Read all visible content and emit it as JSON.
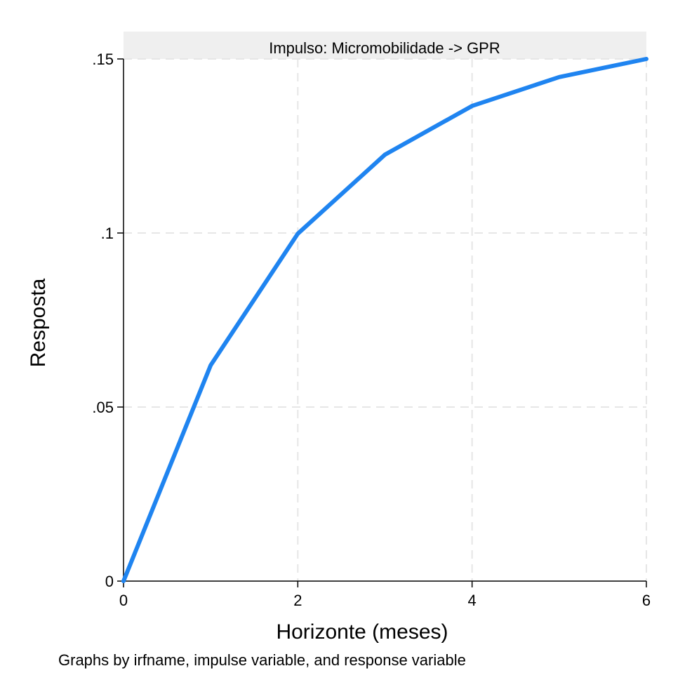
{
  "chart_data": {
    "type": "line",
    "panel_title": "Impulso: Micromobilidade -> GPR",
    "xlabel": "Horizonte (meses)",
    "ylabel": "Resposta",
    "note": "Graphs by irfname, impulse variable, and response variable",
    "xlim": [
      0,
      6
    ],
    "ylim": [
      0,
      0.15
    ],
    "x_ticks": [
      0,
      2,
      4,
      6
    ],
    "x_tick_labels": [
      "0",
      "2",
      "4",
      "6"
    ],
    "y_ticks": [
      0,
      0.05,
      0.1,
      0.15
    ],
    "y_tick_labels": [
      "0",
      ".05",
      ".1",
      ".15"
    ],
    "grid": true,
    "series": [
      {
        "color": "#1f84f0",
        "x": [
          0,
          1,
          2,
          3,
          4,
          5,
          6
        ],
        "y": [
          0,
          0.062,
          0.0998,
          0.1225,
          0.1365,
          0.1448,
          0.15
        ]
      }
    ]
  }
}
